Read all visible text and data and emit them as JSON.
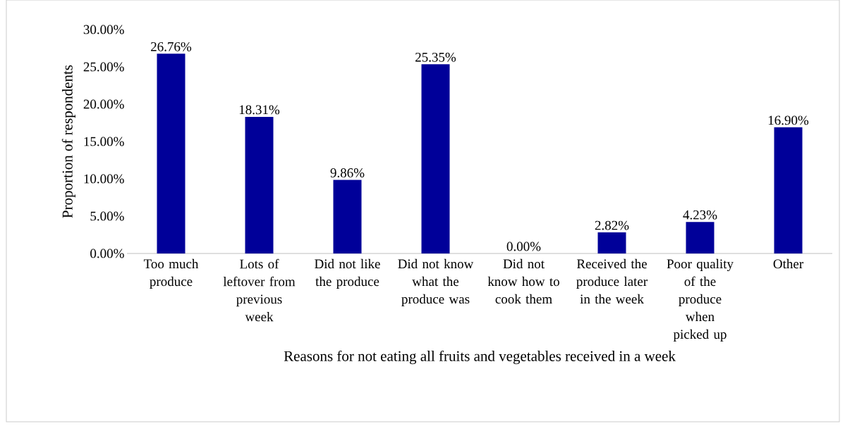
{
  "chart_data": {
    "type": "bar",
    "xlabel": "Reasons for not eating all fruits and vegetables received in a week",
    "ylabel": "Proportion of respondents",
    "categories": [
      "Too much produce",
      "Lots of leftover from previous week",
      "Did not like the produce",
      "Did not know what the produce was",
      "Did not know how to cook them",
      "Received the produce later in the week",
      "Poor quality of the produce when picked up",
      "Other"
    ],
    "values": [
      26.76,
      18.31,
      9.86,
      25.35,
      0.0,
      2.82,
      4.23,
      16.9
    ],
    "value_labels": [
      "26.76%",
      "18.31%",
      "9.86%",
      "25.35%",
      "0.00%",
      "2.82%",
      "4.23%",
      "16.90%"
    ],
    "color": "#000099",
    "ylim": [
      0,
      30
    ],
    "yticks": [
      {
        "value": 0,
        "label": "0.00%"
      },
      {
        "value": 5,
        "label": "5.00%"
      },
      {
        "value": 10,
        "label": "10.00%"
      },
      {
        "value": 15,
        "label": "15.00%"
      },
      {
        "value": 20,
        "label": "20.00%"
      },
      {
        "value": 25,
        "label": "25.00%"
      },
      {
        "value": 30,
        "label": "30.00%"
      }
    ],
    "grid": false
  }
}
